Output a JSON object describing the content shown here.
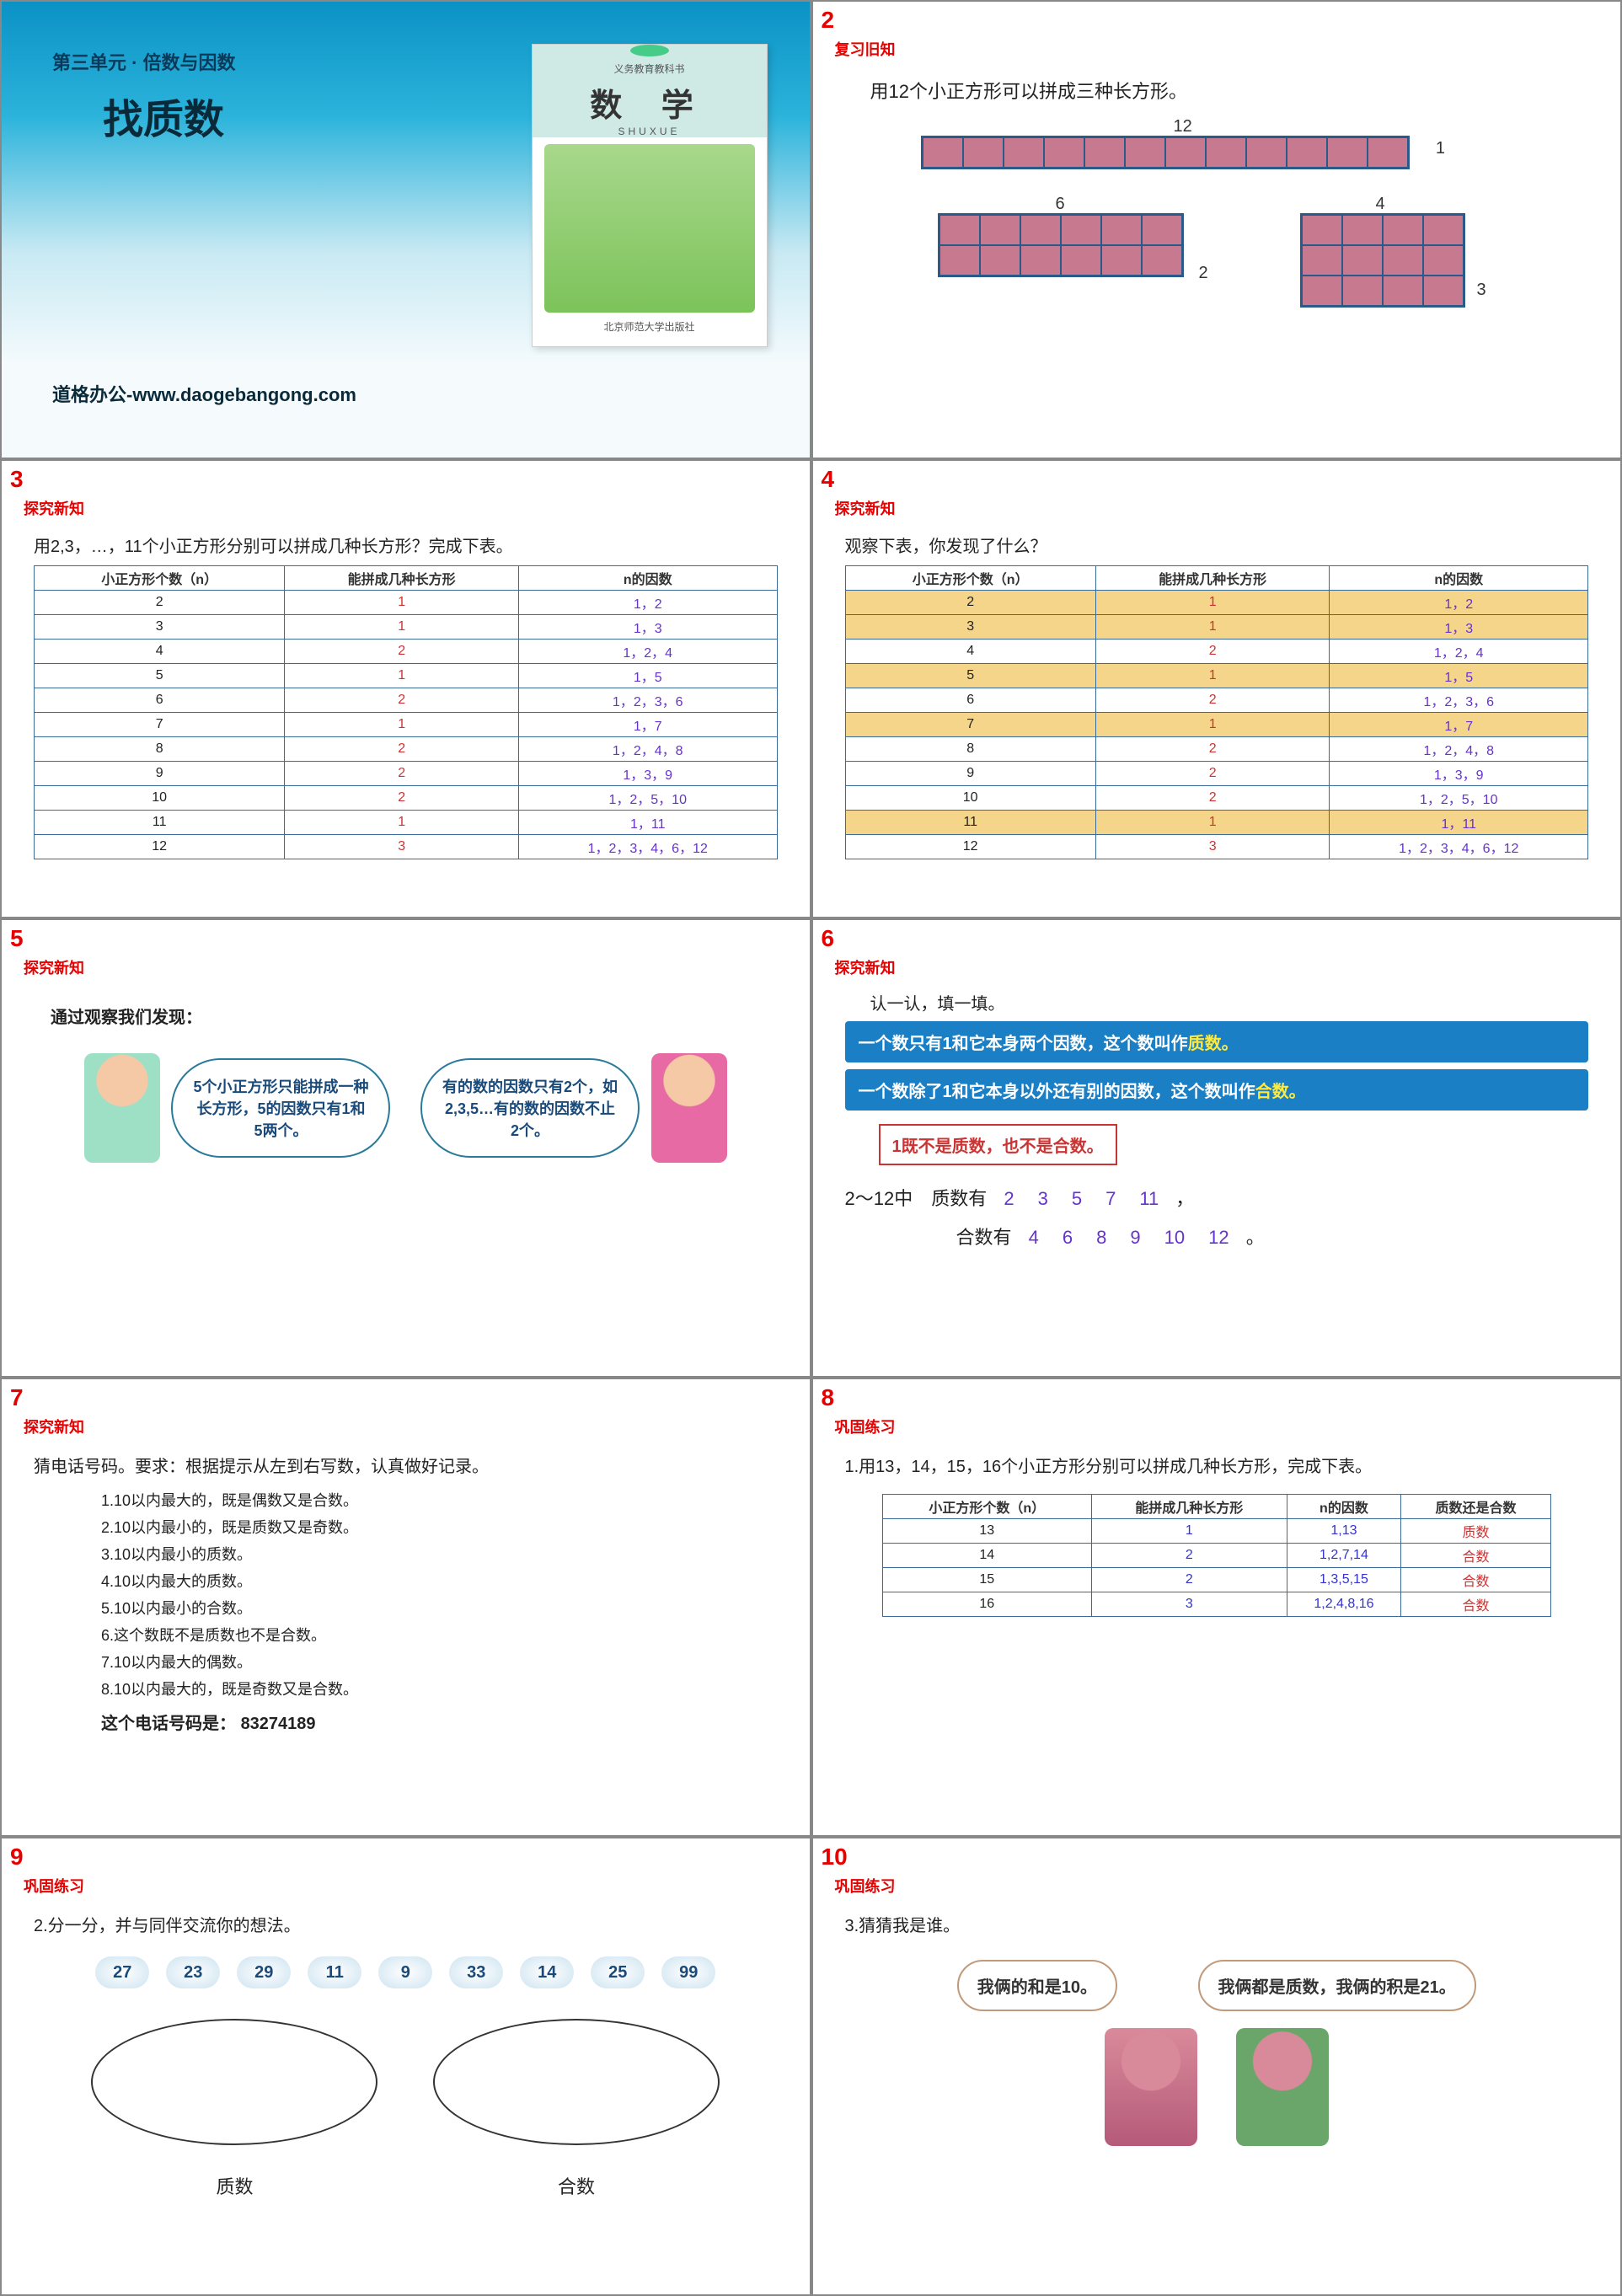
{
  "slides": {
    "s1": {
      "unit": "第三单元 · 倍数与因数",
      "title": "找质数",
      "book_small": "义务教育教科书",
      "book_big": "数 学",
      "book_sub": "SHUXUE",
      "book_pub": "北京师范大学出版社",
      "footer": "道格办公-www.daogebangong.com"
    },
    "s2": {
      "section": "复习旧知",
      "text": "用12个小正方形可以拼成三种长方形。",
      "labels": {
        "l12": "12",
        "l1": "1",
        "l6": "6",
        "l2": "2",
        "l4": "4",
        "l3": "3"
      }
    },
    "s3": {
      "section": "探究新知",
      "text": "用2,3，…，11个小正方形分别可以拼成几种长方形？完成下表。",
      "headers": [
        "小正方形个数（n）",
        "能拼成几种长方形",
        "n的因数"
      ],
      "rows": [
        [
          "2",
          "1",
          "1，2"
        ],
        [
          "3",
          "1",
          "1，3"
        ],
        [
          "4",
          "2",
          "1，2，4"
        ],
        [
          "5",
          "1",
          "1，5"
        ],
        [
          "6",
          "2",
          "1，2，3，6"
        ],
        [
          "7",
          "1",
          "1，7"
        ],
        [
          "8",
          "2",
          "1，2，4，8"
        ],
        [
          "9",
          "2",
          "1，3，9"
        ],
        [
          "10",
          "2",
          "1，2，5，10"
        ],
        [
          "11",
          "1",
          "1，11"
        ],
        [
          "12",
          "3",
          "1，2，3，4，6，12"
        ]
      ]
    },
    "s4": {
      "section": "探究新知",
      "text": "观察下表，你发现了什么？",
      "headers": [
        "小正方形个数（n）",
        "能拼成几种长方形",
        "n的因数"
      ],
      "rows": [
        {
          "v": [
            "2",
            "1",
            "1，2"
          ],
          "hi": true
        },
        {
          "v": [
            "3",
            "1",
            "1，3"
          ],
          "hi": true
        },
        {
          "v": [
            "4",
            "2",
            "1，2，4"
          ],
          "hi": false
        },
        {
          "v": [
            "5",
            "1",
            "1，5"
          ],
          "hi": true
        },
        {
          "v": [
            "6",
            "2",
            "1，2，3，6"
          ],
          "hi": false
        },
        {
          "v": [
            "7",
            "1",
            "1，7"
          ],
          "hi": true
        },
        {
          "v": [
            "8",
            "2",
            "1，2，4，8"
          ],
          "hi": false
        },
        {
          "v": [
            "9",
            "2",
            "1，3，9"
          ],
          "hi": false
        },
        {
          "v": [
            "10",
            "2",
            "1，2，5，10"
          ],
          "hi": false
        },
        {
          "v": [
            "11",
            "1",
            "1，11"
          ],
          "hi": true
        },
        {
          "v": [
            "12",
            "3",
            "1，2，3，4，6，12"
          ],
          "hi": false
        }
      ]
    },
    "s5": {
      "section": "探究新知",
      "lead": "通过观察我们发现：",
      "bubble1": "5个小正方形只能拼成一种长方形，5的因数只有1和5两个。",
      "bubble2": "有的数的因数只有2个，如2,3,5…有的数的因数不止2个。"
    },
    "s6": {
      "section": "探究新知",
      "lead": "认一认，填一填。",
      "box1a": "一个数只有1和它本身两个因数，这个数叫作",
      "box1b": "质数。",
      "box2a": "一个数除了1和它本身以外还有别的因数，这个数叫作",
      "box2b": "合数。",
      "box3": "1既不是质数，也不是合数。",
      "line1_label": "2～12中　质数有",
      "primes": [
        "2",
        "3",
        "5",
        "7",
        "11"
      ],
      "line2_label": "合数有",
      "composites": [
        "4",
        "6",
        "8",
        "9",
        "10",
        "12"
      ]
    },
    "s7": {
      "section": "探究新知",
      "lead": "猜电话号码。要求：根据提示从左到右写数，认真做好记录。",
      "lines": [
        "1.10以内最大的，既是偶数又是合数。",
        "2.10以内最小的，既是质数又是奇数。",
        "3.10以内最小的质数。",
        "4.10以内最大的质数。",
        "5.10以内最小的合数。",
        "6.这个数既不是质数也不是合数。",
        "7.10以内最大的偶数。",
        "8.10以内最大的，既是奇数又是合数。"
      ],
      "answer_label": "这个电话号码是：",
      "answer": "83274189"
    },
    "s8": {
      "section": "巩固练习",
      "text": "1.用13，14，15，16个小正方形分别可以拼成几种长方形，完成下表。",
      "headers": [
        "小正方形个数（n）",
        "能拼成几种长方形",
        "n的因数",
        "质数还是合数"
      ],
      "rows": [
        [
          "13",
          "1",
          "1,13",
          "质数"
        ],
        [
          "14",
          "2",
          "1,2,7,14",
          "合数"
        ],
        [
          "15",
          "2",
          "1,3,5,15",
          "合数"
        ],
        [
          "16",
          "3",
          "1,2,4,8,16",
          "合数"
        ]
      ]
    },
    "s9": {
      "section": "巩固练习",
      "text": "2.分一分，并与同伴交流你的想法。",
      "chips": [
        "27",
        "23",
        "29",
        "11",
        "9",
        "33",
        "14",
        "25",
        "99"
      ],
      "left": "质数",
      "right": "合数"
    },
    "s10": {
      "section": "巩固练习",
      "text": "3.猜猜我是谁。",
      "cloud1": "我俩的和是10。",
      "cloud2": "我俩都是质数，我俩的积是21。"
    }
  },
  "colors": {
    "accent_red": "#e60000",
    "header_blue": "#0b92c5",
    "cell_pink": "#c77a8f",
    "border_blue": "#2a5a8a",
    "highlight": "#f5d58a",
    "box_blue": "#1b7fc5"
  }
}
